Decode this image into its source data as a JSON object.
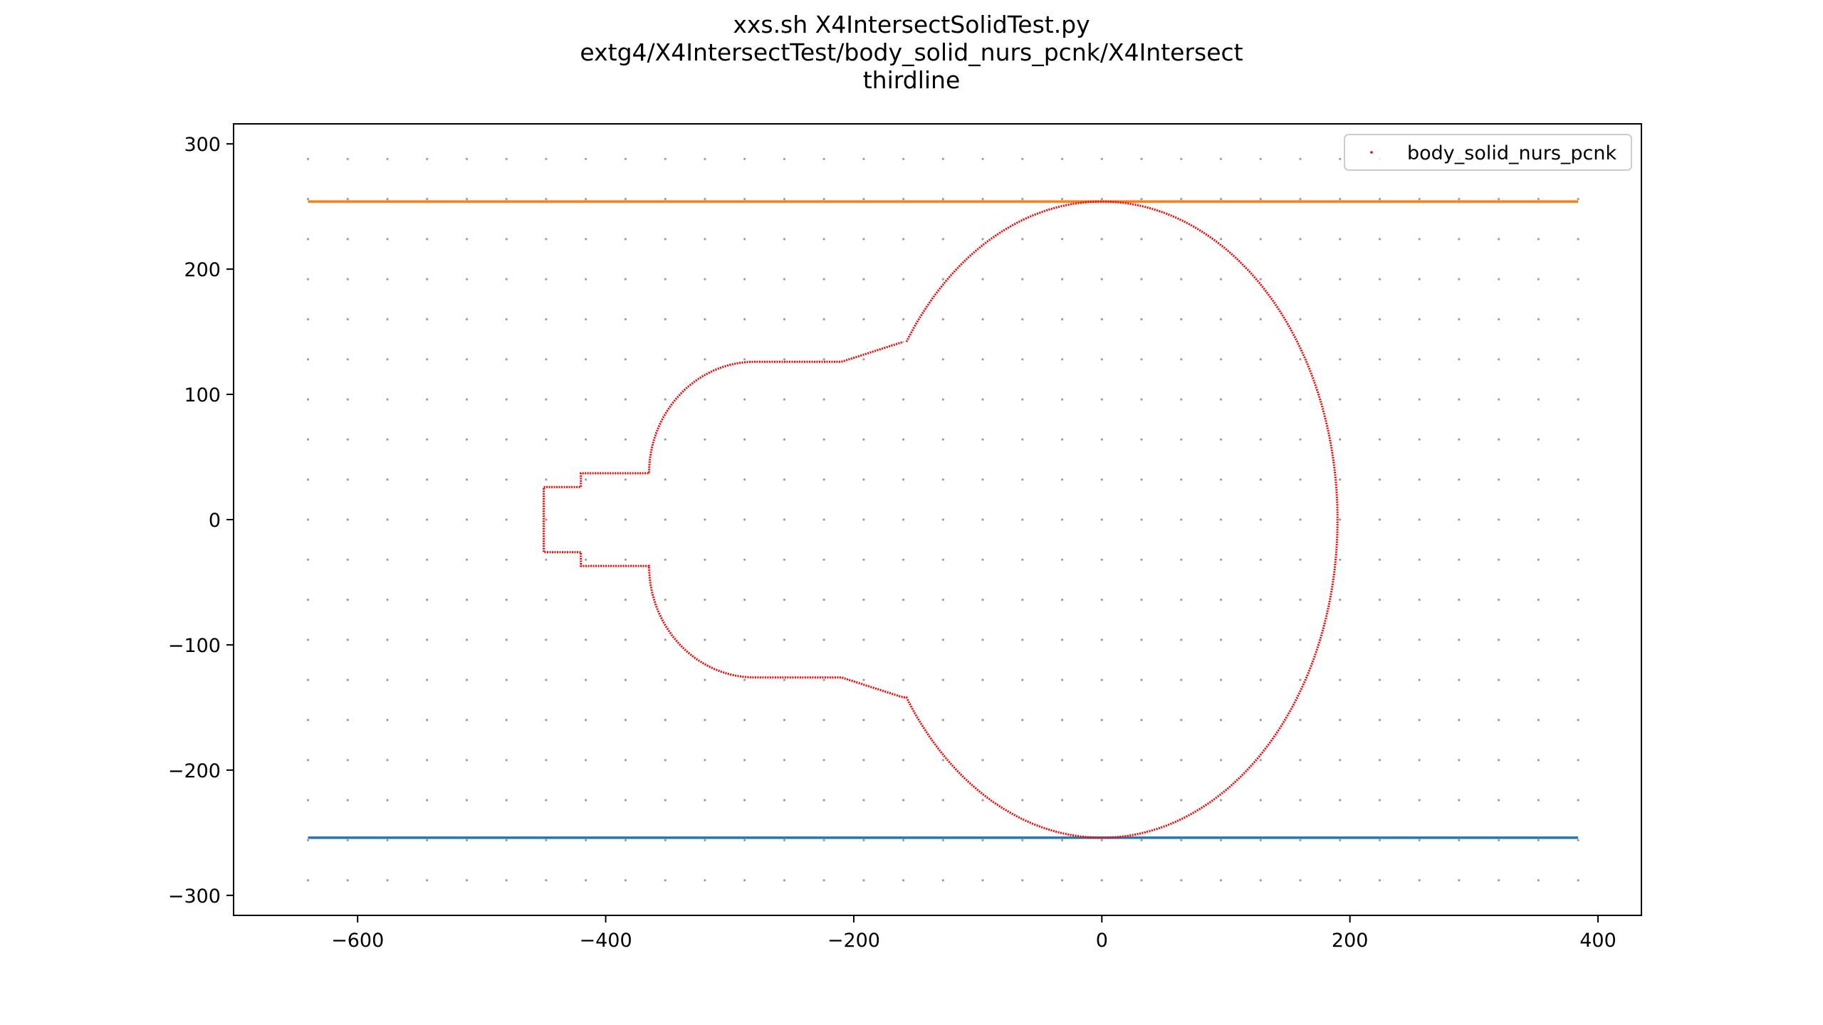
{
  "chart_data": {
    "type": "scatter",
    "title_lines": [
      "xxs.sh X4IntersectSolidTest.py",
      "extg4/X4IntersectTest/body_solid_nurs_pcnk/X4Intersect",
      "thirdline"
    ],
    "xlim": [
      -700,
      435
    ],
    "ylim": [
      -316,
      316
    ],
    "x_ticks": [
      -600,
      -400,
      -200,
      0,
      200,
      400
    ],
    "x_tick_labels": [
      "−600",
      "−400",
      "−200",
      "0",
      "200",
      "400"
    ],
    "y_ticks": [
      300,
      200,
      100,
      0,
      -100,
      -200,
      -300
    ],
    "y_tick_labels": [
      "300",
      "200",
      "100",
      "0",
      "−100",
      "−200",
      "−300"
    ],
    "grid_points": {
      "x_start": -640,
      "x_end": 384,
      "x_step": 32,
      "y_start": -288,
      "y_end": 288,
      "y_step": 32,
      "color": "#9e9e9e"
    },
    "hlines": [
      {
        "y": 254,
        "x_range": [
          -640,
          384
        ],
        "color": "#ff7f0e"
      },
      {
        "y": -254,
        "x_range": [
          -640,
          384
        ],
        "color": "#1f77b4"
      }
    ],
    "series": [
      {
        "name": "body_solid_nurs_pcnk",
        "color": "#ff0000",
        "shape": {
          "big_ellipse": {
            "cx": 0,
            "cy": 0,
            "rx": 190,
            "ry": 254
          },
          "neck_top_join": [
            -160,
            142
          ],
          "neck_to": [
            -210,
            126
          ],
          "flat_top": [
            [
              -210,
              126
            ],
            [
              -280,
              126
            ]
          ],
          "small_arc_to": [
            -365,
            37
          ],
          "step1": [
            [
              -365,
              37
            ],
            [
              -420,
              37
            ],
            [
              -420,
              26
            ],
            [
              -450,
              26
            ]
          ],
          "bottom_tip": [
            -450,
            -26
          ]
        }
      }
    ],
    "legend": {
      "position": "upper right",
      "label": "body_solid_nurs_pcnk"
    }
  }
}
